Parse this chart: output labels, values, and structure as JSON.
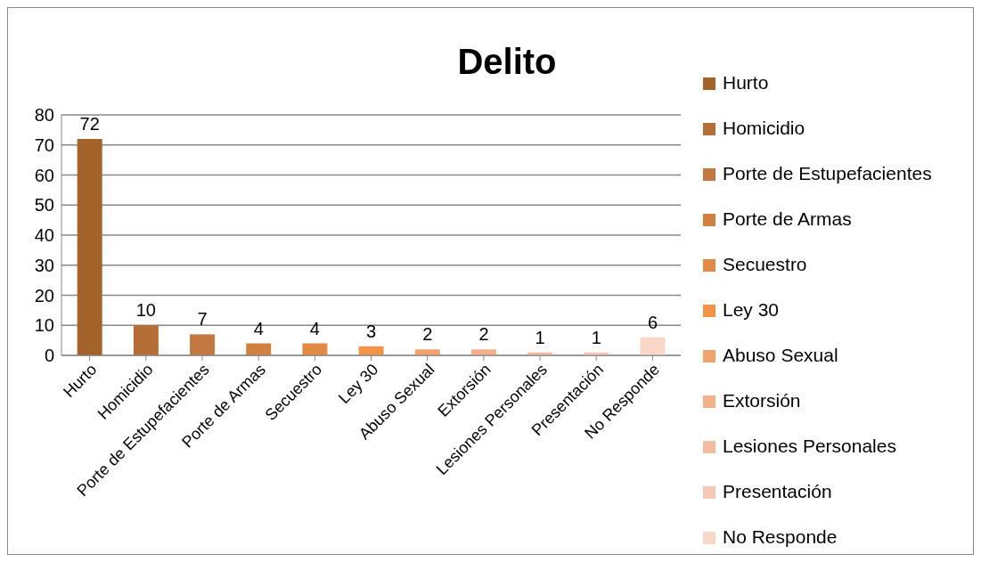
{
  "chart_data": {
    "type": "bar",
    "title": "Delito",
    "stacked": true,
    "categories": [
      "Hurto",
      "Homicidio",
      "Porte de Estupefacientes",
      "Porte de Armas",
      "Secuestro",
      "Ley 30",
      "Abuso Sexual",
      "Extorsión",
      "Lesiones Personales",
      "Presentación",
      "No Responde"
    ],
    "series": [
      {
        "name": "Hurto",
        "color": "#a5632c",
        "values": [
          72,
          null,
          null,
          null,
          null,
          null,
          null,
          null,
          null,
          null,
          null
        ]
      },
      {
        "name": "Homicidio",
        "color": "#b56e37",
        "values": [
          null,
          10,
          null,
          null,
          null,
          null,
          null,
          null,
          null,
          null,
          null
        ]
      },
      {
        "name": "Porte de Estupefacientes",
        "color": "#c27840",
        "values": [
          null,
          null,
          7,
          null,
          null,
          null,
          null,
          null,
          null,
          null,
          null
        ]
      },
      {
        "name": "Porte de Armas",
        "color": "#d0803f",
        "values": [
          null,
          null,
          null,
          4,
          null,
          null,
          null,
          null,
          null,
          null,
          null
        ]
      },
      {
        "name": "Secuestro",
        "color": "#e08a44",
        "values": [
          null,
          null,
          null,
          null,
          4,
          null,
          null,
          null,
          null,
          null,
          null
        ]
      },
      {
        "name": "Ley 30",
        "color": "#f29346",
        "values": [
          null,
          null,
          null,
          null,
          null,
          3,
          null,
          null,
          null,
          null,
          null
        ]
      },
      {
        "name": "Abuso Sexual",
        "color": "#f2a26d",
        "values": [
          null,
          null,
          null,
          null,
          null,
          null,
          2,
          null,
          null,
          null,
          null
        ]
      },
      {
        "name": "Extorsión",
        "color": "#f3b08b",
        "values": [
          null,
          null,
          null,
          null,
          null,
          null,
          null,
          2,
          null,
          null,
          null
        ]
      },
      {
        "name": "Lesiones Personales",
        "color": "#f5bba0",
        "values": [
          null,
          null,
          null,
          null,
          null,
          null,
          null,
          null,
          1,
          null,
          null
        ]
      },
      {
        "name": "Presentación",
        "color": "#f7c8b3",
        "values": [
          null,
          null,
          null,
          null,
          null,
          null,
          null,
          null,
          null,
          1,
          null
        ]
      },
      {
        "name": "No Responde",
        "color": "#f9d7c8",
        "values": [
          null,
          null,
          null,
          null,
          null,
          null,
          null,
          null,
          null,
          null,
          6
        ]
      }
    ],
    "ylim": [
      0,
      80
    ],
    "yticks": [
      0,
      10,
      20,
      30,
      40,
      50,
      60,
      70,
      80
    ],
    "grid": "y",
    "legend": "right",
    "data_labels": true
  }
}
